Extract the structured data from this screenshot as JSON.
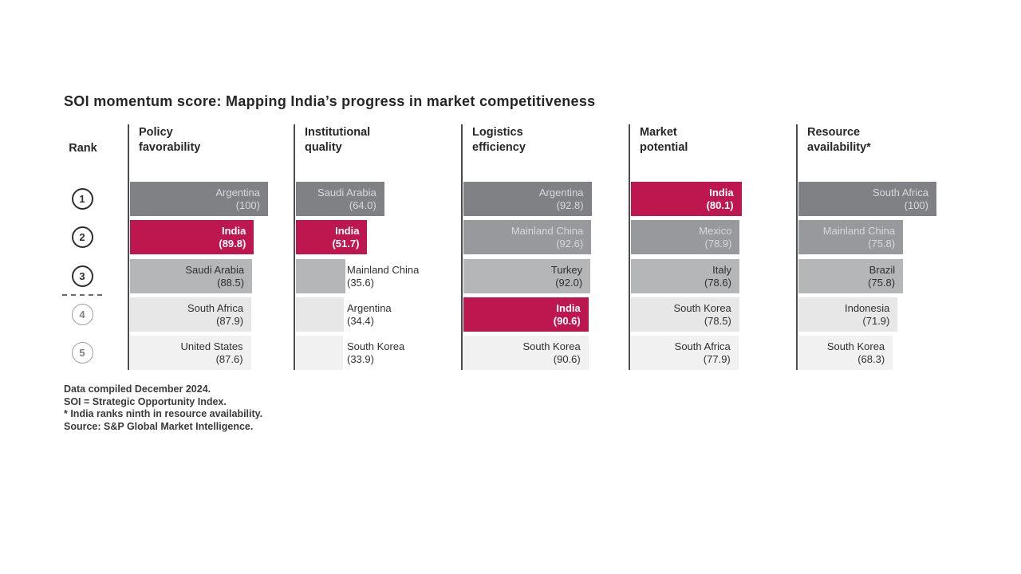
{
  "chart_data": {
    "type": "bar",
    "title": "SOI momentum score: Mapping India’s progress in market competitiveness",
    "value_range": [
      0,
      100
    ],
    "highlight_country": "India",
    "groups": [
      {
        "label": "Policy favorability",
        "label_lines": [
          "Policy",
          "favorability"
        ],
        "entries": [
          {
            "rank": 1,
            "country": "Argentina",
            "value": 100,
            "value_display": "(100)"
          },
          {
            "rank": 2,
            "country": "India",
            "value": 89.8,
            "value_display": "(89.8)"
          },
          {
            "rank": 3,
            "country": "Saudi Arabia",
            "value": 88.5,
            "value_display": "(88.5)"
          },
          {
            "rank": 4,
            "country": "South Africa",
            "value": 87.9,
            "value_display": "(87.9)"
          },
          {
            "rank": 5,
            "country": "United States",
            "value": 87.6,
            "value_display": "(87.6)"
          }
        ]
      },
      {
        "label": "Institutional quality",
        "label_lines": [
          "Institutional",
          "quality"
        ],
        "entries": [
          {
            "rank": 1,
            "country": "Saudi Arabia",
            "value": 64.0,
            "value_display": "(64.0)"
          },
          {
            "rank": 2,
            "country": "India",
            "value": 51.7,
            "value_display": "(51.7)"
          },
          {
            "rank": 3,
            "country": "Mainland China",
            "value": 35.6,
            "value_display": "(35.6)"
          },
          {
            "rank": 4,
            "country": "Argentina",
            "value": 34.4,
            "value_display": "(34.4)"
          },
          {
            "rank": 5,
            "country": "South Korea",
            "value": 33.9,
            "value_display": "(33.9)"
          }
        ]
      },
      {
        "label": "Logistics efficiency",
        "label_lines": [
          "Logistics",
          "efficiency"
        ],
        "entries": [
          {
            "rank": 1,
            "country": "Argentina",
            "value": 92.8,
            "value_display": "(92.8)"
          },
          {
            "rank": 2,
            "country": "Mainland China",
            "value": 92.6,
            "value_display": "(92.6)"
          },
          {
            "rank": 3,
            "country": "Turkey",
            "value": 92.0,
            "value_display": "(92.0)"
          },
          {
            "rank": 4,
            "country": "India",
            "value": 90.6,
            "value_display": "(90.6)"
          },
          {
            "rank": 5,
            "country": "South Korea",
            "value": 90.6,
            "value_display": "(90.6)"
          }
        ]
      },
      {
        "label": "Market potential",
        "label_lines": [
          "Market",
          "potential"
        ],
        "entries": [
          {
            "rank": 1,
            "country": "India",
            "value": 80.1,
            "value_display": "(80.1)"
          },
          {
            "rank": 2,
            "country": "Mexico",
            "value": 78.9,
            "value_display": "(78.9)"
          },
          {
            "rank": 3,
            "country": "Italy",
            "value": 78.6,
            "value_display": "(78.6)"
          },
          {
            "rank": 4,
            "country": "South Korea",
            "value": 78.5,
            "value_display": "(78.5)"
          },
          {
            "rank": 5,
            "country": "South Africa",
            "value": 77.9,
            "value_display": "(77.9)"
          }
        ]
      },
      {
        "label": "Resource availability*",
        "label_lines": [
          "Resource",
          "availability*"
        ],
        "entries": [
          {
            "rank": 1,
            "country": "South Africa",
            "value": 100,
            "value_display": "(100)"
          },
          {
            "rank": 2,
            "country": "Mainland China",
            "value": 75.8,
            "value_display": "(75.8)"
          },
          {
            "rank": 3,
            "country": "Brazil",
            "value": 75.8,
            "value_display": "(75.8)"
          },
          {
            "rank": 4,
            "country": "Indonesia",
            "value": 71.9,
            "value_display": "(71.9)"
          },
          {
            "rank": 5,
            "country": "South Korea",
            "value": 68.3,
            "value_display": "(68.3)"
          }
        ]
      }
    ]
  },
  "rank_column": {
    "header": "Rank",
    "labels": [
      "1",
      "2",
      "3",
      "4",
      "5"
    ],
    "dashed_divider_between": "3-4"
  },
  "footnotes": [
    "Data compiled December 2024.",
    "SOI = Strategic Opportunity Index.",
    "* India ranks ninth in resource availability.",
    "Source: S&P Global Market Intelligence."
  ],
  "colors": {
    "india_accent": "#BE164E",
    "rank_grays": [
      "#7F8184",
      "#97999C",
      "#B5B6B8",
      "#E7E7E8",
      "#F1F1F2"
    ],
    "bar_light_text": "#D7D8D9",
    "bar_white_text": "#FFFFFF",
    "bar_dark_text": "#303030"
  }
}
